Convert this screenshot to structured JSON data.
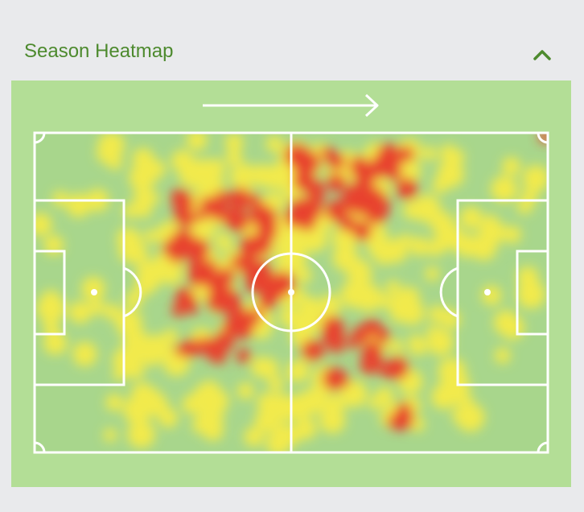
{
  "header": {
    "title": "Season Heatmap"
  }
}
